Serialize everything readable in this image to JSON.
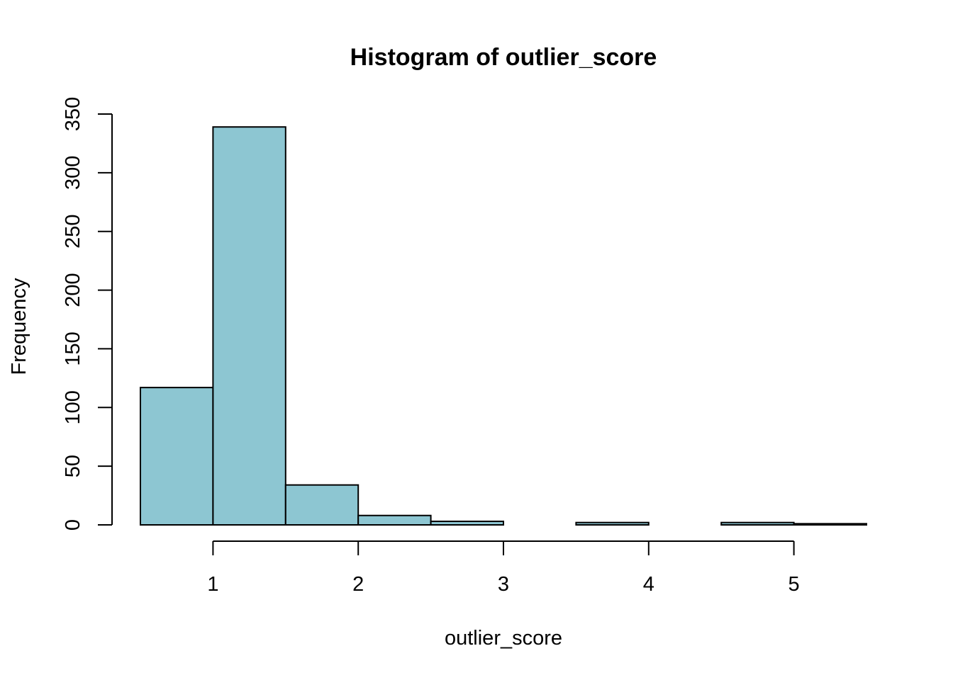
{
  "chart_data": {
    "type": "bar",
    "title": "Histogram of outlier_score",
    "xlabel": "outlier_score",
    "ylabel": "Frequency",
    "bar_color": "#8DC6D2",
    "bins": [
      {
        "start": 0.5,
        "end": 1.0,
        "count": 117
      },
      {
        "start": 1.0,
        "end": 1.5,
        "count": 339
      },
      {
        "start": 1.5,
        "end": 2.0,
        "count": 34
      },
      {
        "start": 2.0,
        "end": 2.5,
        "count": 8
      },
      {
        "start": 2.5,
        "end": 3.0,
        "count": 3
      },
      {
        "start": 3.0,
        "end": 3.5,
        "count": 0
      },
      {
        "start": 3.5,
        "end": 4.0,
        "count": 2
      },
      {
        "start": 4.0,
        "end": 4.5,
        "count": 0
      },
      {
        "start": 4.5,
        "end": 5.0,
        "count": 2
      },
      {
        "start": 5.0,
        "end": 5.5,
        "count": 1
      }
    ],
    "xticks": [
      1,
      2,
      3,
      4,
      5
    ],
    "yticks": [
      0,
      50,
      100,
      150,
      200,
      250,
      300,
      350
    ],
    "xlim": [
      0.5,
      5.5
    ],
    "ylim": [
      0,
      350
    ],
    "grid": false
  }
}
